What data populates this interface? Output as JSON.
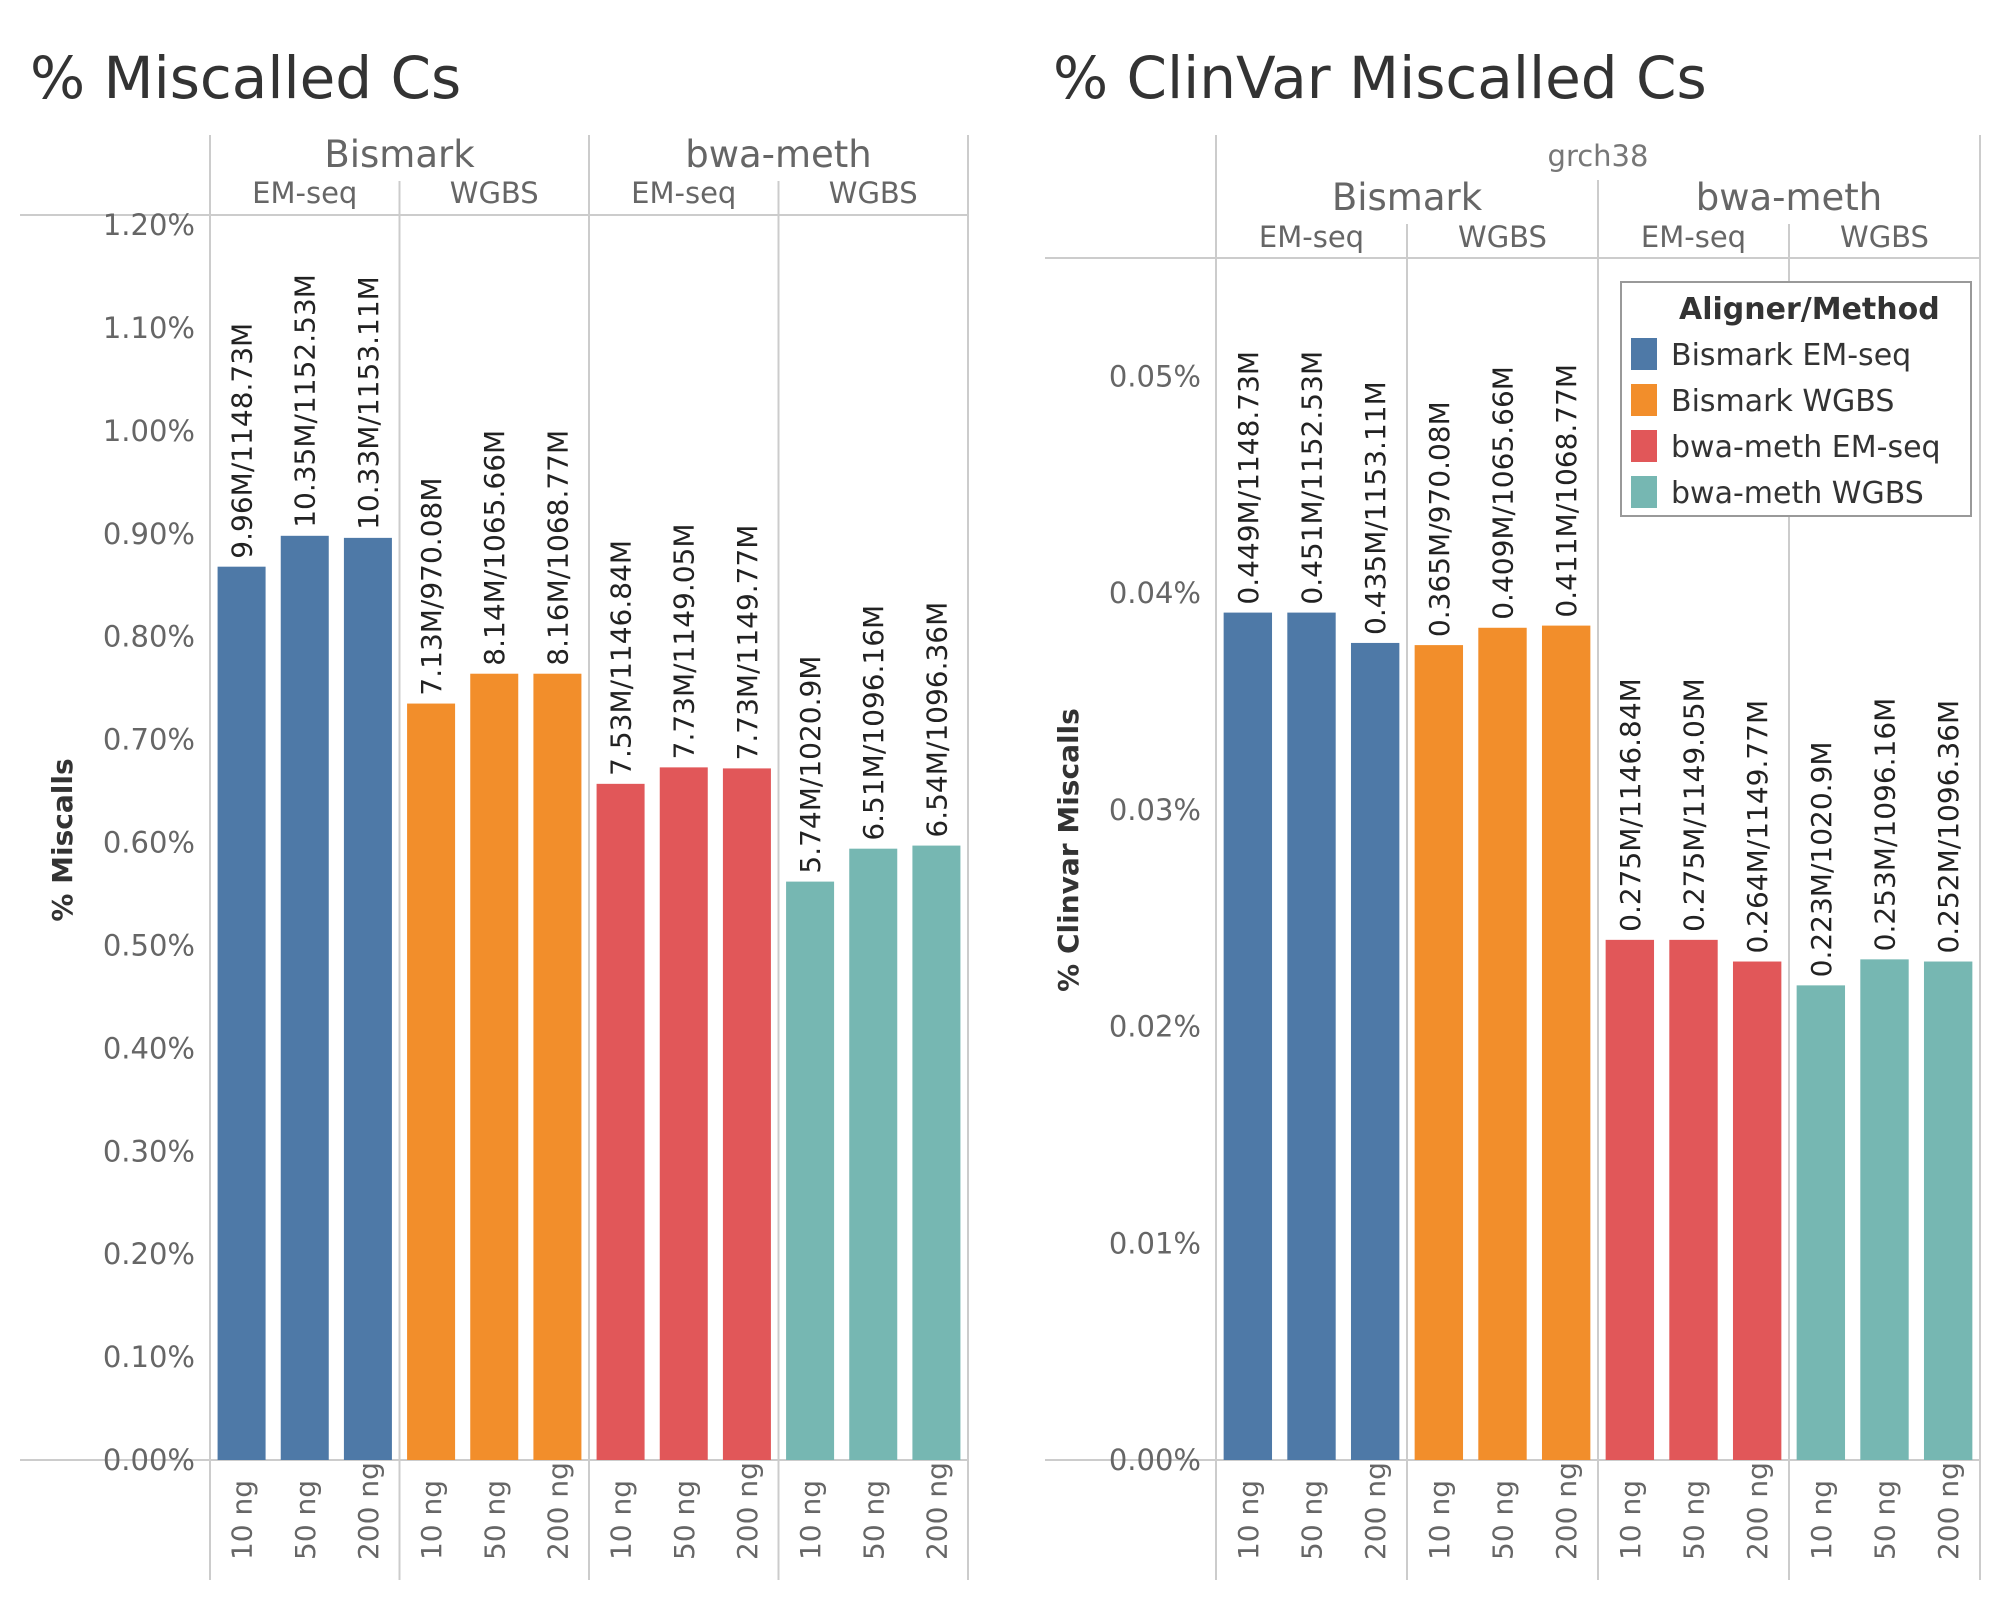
{
  "colors": {
    "Bismark EM-seq": "#4e79a7",
    "Bismark WGBS": "#f28e2b",
    "bwa-meth EM-seq": "#e15759",
    "bwa-meth WGBS": "#76b7b2"
  },
  "legend": {
    "title": "Aligner/Method",
    "items": [
      "Bismark EM-seq",
      "Bismark WGBS",
      "bwa-meth EM-seq",
      "bwa-meth WGBS"
    ]
  },
  "chart_data": [
    {
      "type": "bar",
      "title": "% Miscalled Cs",
      "ylabel": "% Miscalls",
      "ylim": [
        0,
        1.2
      ],
      "yticks": [
        0,
        0.1,
        0.2,
        0.3,
        0.4,
        0.5,
        0.6,
        0.7,
        0.8,
        0.9,
        1.0,
        1.1,
        1.2
      ],
      "ytick_labels": [
        "0.00%",
        "0.10%",
        "0.20%",
        "0.30%",
        "0.40%",
        "0.50%",
        "0.60%",
        "0.70%",
        "0.80%",
        "0.90%",
        "1.00%",
        "1.10%",
        "1.20%"
      ],
      "header_top": "",
      "aligners": [
        "Bismark",
        "bwa-meth"
      ],
      "methods": [
        "EM-seq",
        "WGBS"
      ],
      "categories": [
        "10 ng",
        "50 ng",
        "200 ng"
      ],
      "series": [
        {
          "name": "Bismark EM-seq",
          "aligner": "Bismark",
          "method": "EM-seq",
          "values": [
            0.868,
            0.898,
            0.896
          ],
          "labels": [
            "9.96M/1148.73M",
            "10.35M/1152.53M",
            "10.33M/1153.11M"
          ]
        },
        {
          "name": "Bismark WGBS",
          "aligner": "Bismark",
          "method": "WGBS",
          "values": [
            0.735,
            0.764,
            0.764
          ],
          "labels": [
            "7.13M/970.08M",
            "8.14M/1065.66M",
            "8.16M/1068.77M"
          ]
        },
        {
          "name": "bwa-meth EM-seq",
          "aligner": "bwa-meth",
          "method": "EM-seq",
          "values": [
            0.657,
            0.673,
            0.672
          ],
          "labels": [
            "7.53M/1146.84M",
            "7.73M/1149.05M",
            "7.73M/1149.77M"
          ]
        },
        {
          "name": "bwa-meth WGBS",
          "aligner": "bwa-meth",
          "method": "WGBS",
          "values": [
            0.562,
            0.594,
            0.597
          ],
          "labels": [
            "5.74M/1020.9M",
            "6.51M/1096.16M",
            "6.54M/1096.36M"
          ]
        }
      ]
    },
    {
      "type": "bar",
      "title": "% ClinVar Miscalled Cs",
      "ylabel": "% Clinvar Miscalls",
      "ylim": [
        0,
        0.055
      ],
      "yticks": [
        0,
        0.01,
        0.02,
        0.03,
        0.04,
        0.05
      ],
      "ytick_labels": [
        "0.00%",
        "0.01%",
        "0.02%",
        "0.03%",
        "0.04%",
        "0.05%"
      ],
      "header_top": "grch38",
      "aligners": [
        "Bismark",
        "bwa-meth"
      ],
      "methods": [
        "EM-seq",
        "WGBS"
      ],
      "categories": [
        "10 ng",
        "50 ng",
        "200 ng"
      ],
      "series": [
        {
          "name": "Bismark EM-seq",
          "aligner": "Bismark",
          "method": "EM-seq",
          "values": [
            0.0391,
            0.0391,
            0.0377
          ],
          "labels": [
            "0.449M/1148.73M",
            "0.451M/1152.53M",
            "0.435M/1153.11M"
          ]
        },
        {
          "name": "Bismark WGBS",
          "aligner": "Bismark",
          "method": "WGBS",
          "values": [
            0.0376,
            0.0384,
            0.0385
          ],
          "labels": [
            "0.365M/970.08M",
            "0.409M/1065.66M",
            "0.411M/1068.77M"
          ]
        },
        {
          "name": "bwa-meth EM-seq",
          "aligner": "bwa-meth",
          "method": "EM-seq",
          "values": [
            0.024,
            0.024,
            0.023
          ],
          "labels": [
            "0.275M/1146.84M",
            "0.275M/1149.05M",
            "0.264M/1149.77M"
          ]
        },
        {
          "name": "bwa-meth WGBS",
          "aligner": "bwa-meth",
          "method": "WGBS",
          "values": [
            0.0219,
            0.0231,
            0.023
          ],
          "labels": [
            "0.223M/1020.9M",
            "0.253M/1096.16M",
            "0.252M/1096.36M"
          ]
        }
      ]
    }
  ]
}
